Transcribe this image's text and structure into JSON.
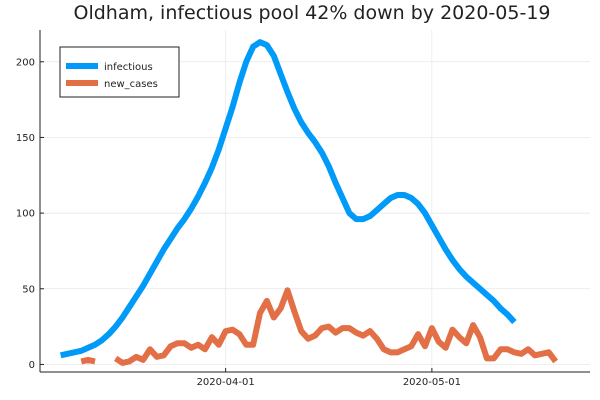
{
  "chart_data": {
    "type": "line",
    "title": "Oldham, infectious pool 42% down by 2020-05-19",
    "xlabel": "",
    "ylabel": "",
    "x_start": "2020-03-08",
    "x_end": "2020-05-19",
    "xlim": [
      "2020-03-05",
      "2020-05-24"
    ],
    "ylim": [
      -5,
      221
    ],
    "x_ticks": [
      {
        "date": "2020-04-01",
        "label": "2020-04-01"
      },
      {
        "date": "2020-05-01",
        "label": "2020-05-01"
      }
    ],
    "y_ticks": [
      0,
      50,
      100,
      150,
      200
    ],
    "grid": true,
    "legend_position": "top-left",
    "series": [
      {
        "name": "infectious",
        "color": "#009af9",
        "values": [
          6,
          7,
          8,
          9,
          11,
          13,
          16,
          20,
          25,
          31,
          38,
          45,
          52,
          60,
          68,
          76,
          83,
          90,
          96,
          103,
          111,
          120,
          130,
          142,
          156,
          170,
          186,
          200,
          210,
          213,
          211,
          204,
          192,
          180,
          169,
          160,
          153,
          147,
          140,
          131,
          120,
          110,
          100,
          96,
          96,
          98,
          102,
          106,
          110,
          112,
          112,
          110,
          106,
          100,
          92,
          84,
          76,
          69,
          63,
          58,
          54,
          50,
          46,
          42,
          37,
          33,
          28
        ]
      },
      {
        "name": "new_cases",
        "color": "#e26f46",
        "values": [
          null,
          null,
          null,
          2,
          3,
          2,
          null,
          null,
          4,
          1,
          2,
          5,
          3,
          10,
          5,
          6,
          12,
          14,
          14,
          11,
          13,
          10,
          18,
          13,
          22,
          23,
          20,
          13,
          13,
          34,
          42,
          31,
          37,
          49,
          35,
          22,
          17,
          19,
          24,
          25,
          21,
          24,
          24,
          21,
          19,
          22,
          17,
          10,
          8,
          8,
          10,
          12,
          20,
          12,
          24,
          15,
          11,
          23,
          18,
          14,
          26,
          18,
          4,
          4,
          10,
          10,
          8,
          7,
          10,
          6,
          7,
          8,
          2
        ]
      }
    ]
  }
}
